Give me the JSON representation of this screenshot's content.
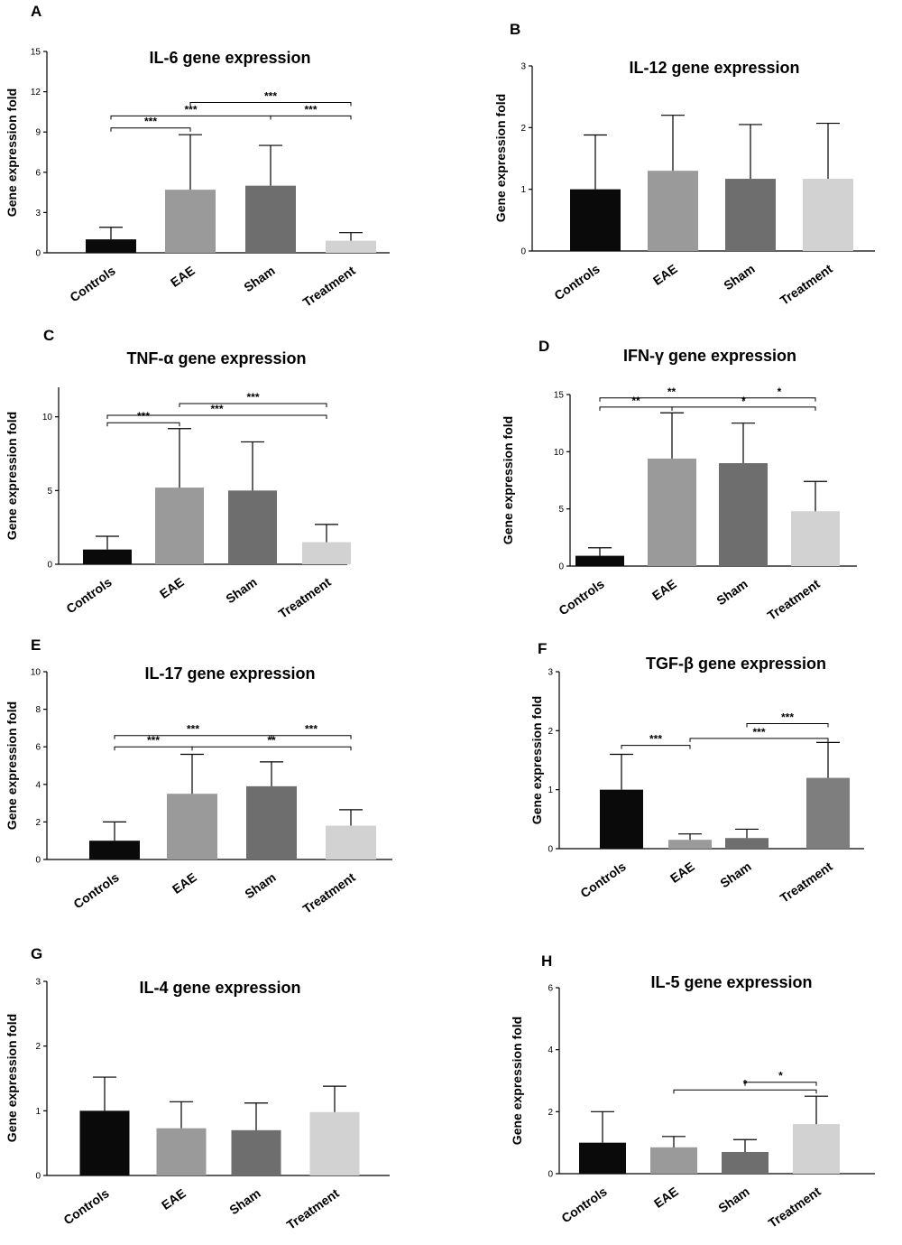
{
  "chart_data": [
    {
      "panel": "A",
      "type": "bar",
      "title": "IL-6 gene expression",
      "ylabel": "Gene expression fold",
      "categories": [
        "Controls",
        "EAE",
        "Sham",
        "Treatment"
      ],
      "values": [
        1.0,
        4.7,
        5.0,
        0.9
      ],
      "errors": [
        0.9,
        4.1,
        3.0,
        0.6
      ],
      "colors": [
        "#0a0a0a",
        "#9a9a9a",
        "#6e6e6e",
        "#d2d2d2"
      ],
      "ylim": [
        0,
        15
      ],
      "yticks": [
        "0",
        "3",
        "6",
        "9",
        "12",
        "15"
      ],
      "significance": [
        {
          "from": 0,
          "to": 1,
          "label": "***",
          "level": 9.3
        },
        {
          "from": 0,
          "to": 2,
          "label": "***",
          "level": 10.2
        },
        {
          "from": 2,
          "to": 3,
          "label": "***",
          "level": 10.2
        },
        {
          "from": 1,
          "to": 3,
          "label": "***",
          "level": 11.2
        }
      ]
    },
    {
      "panel": "B",
      "type": "bar",
      "title": "IL-12 gene expression",
      "ylabel": "Gene expression fold",
      "categories": [
        "Controls",
        "EAE",
        "Sham",
        "Treatment"
      ],
      "values": [
        1.0,
        1.3,
        1.17,
        1.17
      ],
      "errors": [
        0.88,
        0.9,
        0.88,
        0.9
      ],
      "colors": [
        "#0a0a0a",
        "#9a9a9a",
        "#6e6e6e",
        "#d2d2d2"
      ],
      "ylim": [
        0,
        3
      ],
      "yticks": [
        "0",
        "1",
        "2",
        "3"
      ],
      "significance": []
    },
    {
      "panel": "C",
      "type": "bar",
      "title": "TNF-α gene expression",
      "ylabel": "Gene expression fold",
      "categories": [
        "Controls",
        "EAE",
        "Sham",
        "Treatment"
      ],
      "values": [
        1.0,
        5.2,
        5.0,
        1.5
      ],
      "errors": [
        0.9,
        4.0,
        3.3,
        1.2
      ],
      "colors": [
        "#0a0a0a",
        "#9a9a9a",
        "#6e6e6e",
        "#d2d2d2"
      ],
      "ylim": [
        0,
        12
      ],
      "yticks": [
        "0",
        "5",
        "10"
      ],
      "significance": [
        {
          "from": 0,
          "to": 1,
          "label": "***",
          "level": 9.6
        },
        {
          "from": 0,
          "to": 3,
          "label": "***",
          "level": 10.1
        },
        {
          "from": 1,
          "to": 3,
          "label": "***",
          "level": 10.9
        }
      ]
    },
    {
      "panel": "D",
      "type": "bar",
      "title": "IFN-γ gene expression",
      "ylabel": "Gene expression fold",
      "categories": [
        "Controls",
        "EAE",
        "Sham",
        "Treatment"
      ],
      "values": [
        0.9,
        9.4,
        9.0,
        4.8
      ],
      "errors": [
        0.7,
        4.0,
        3.5,
        2.6
      ],
      "colors": [
        "#0a0a0a",
        "#9a9a9a",
        "#6e6e6e",
        "#d2d2d2"
      ],
      "ylim": [
        0,
        15
      ],
      "yticks": [
        "0",
        "5",
        "10",
        "15"
      ],
      "significance": [
        {
          "from": 0,
          "to": 1,
          "label": "**",
          "level": 13.9
        },
        {
          "from": 1,
          "to": 3,
          "label": "*",
          "level": 13.9
        },
        {
          "from": 0,
          "to": 2,
          "label": "**",
          "level": 14.7
        },
        {
          "from": 2,
          "to": 3,
          "label": "*",
          "level": 14.7
        }
      ]
    },
    {
      "panel": "E",
      "type": "bar",
      "title": "IL-17 gene expression",
      "ylabel": "Gene expression fold",
      "categories": [
        "Controls",
        "EAE",
        "Sham",
        "Treatment"
      ],
      "values": [
        1.0,
        3.5,
        3.9,
        1.8
      ],
      "errors": [
        1.0,
        2.1,
        1.3,
        0.85
      ],
      "colors": [
        "#0a0a0a",
        "#9a9a9a",
        "#6e6e6e",
        "#d2d2d2"
      ],
      "ylim": [
        0,
        10
      ],
      "yticks": [
        "0",
        "2",
        "4",
        "6",
        "8",
        "10"
      ],
      "significance": [
        {
          "from": 0,
          "to": 1,
          "label": "***",
          "level": 6.0
        },
        {
          "from": 1,
          "to": 3,
          "label": "**",
          "level": 6.0
        },
        {
          "from": 0,
          "to": 2,
          "label": "***",
          "level": 6.6
        },
        {
          "from": 2,
          "to": 3,
          "label": "***",
          "level": 6.6
        }
      ]
    },
    {
      "panel": "F",
      "type": "bar",
      "title": "TGF-β gene expression",
      "ylabel": "Gene expression fold",
      "categories": [
        "Controls",
        "EAE",
        "Sham",
        "Treatment"
      ],
      "values": [
        1.0,
        0.15,
        0.18,
        1.2
      ],
      "errors": [
        0.6,
        0.1,
        0.15,
        0.6
      ],
      "colors": [
        "#0a0a0a",
        "#9a9a9a",
        "#6e6e6e",
        "#7e7e7e"
      ],
      "ylim": [
        0,
        3
      ],
      "yticks": [
        "0",
        "1",
        "2",
        "3"
      ],
      "significance": [
        {
          "from": 0,
          "to": 1,
          "label": "***",
          "level": 1.75
        },
        {
          "from": 1,
          "to": 3,
          "label": "***",
          "level": 1.87
        },
        {
          "from": 2,
          "to": 3,
          "label": "***",
          "level": 2.12
        }
      ]
    },
    {
      "panel": "G",
      "type": "bar",
      "title": "IL-4 gene expression",
      "ylabel": "Gene expression fold",
      "categories": [
        "Controls",
        "EAE",
        "Sham",
        "Treatment"
      ],
      "values": [
        1.0,
        0.73,
        0.7,
        0.98
      ],
      "errors": [
        0.52,
        0.41,
        0.42,
        0.4
      ],
      "colors": [
        "#0a0a0a",
        "#9a9a9a",
        "#6e6e6e",
        "#d2d2d2"
      ],
      "ylim": [
        0,
        3
      ],
      "yticks": [
        "0",
        "1",
        "2",
        "3"
      ],
      "significance": []
    },
    {
      "panel": "H",
      "type": "bar",
      "title": "IL-5 gene expression",
      "ylabel": "Gene expression fold",
      "categories": [
        "Controls",
        "EAE",
        "Sham",
        "Treatment"
      ],
      "values": [
        1.0,
        0.85,
        0.7,
        1.6
      ],
      "errors": [
        1.0,
        0.35,
        0.4,
        0.9
      ],
      "colors": [
        "#0a0a0a",
        "#9a9a9a",
        "#6e6e6e",
        "#d2d2d2"
      ],
      "ylim": [
        0,
        6
      ],
      "yticks": [
        "0",
        "2",
        "4",
        "6"
      ],
      "significance": [
        {
          "from": 1,
          "to": 3,
          "label": "*",
          "level": 2.7
        },
        {
          "from": 2,
          "to": 3,
          "label": "*",
          "level": 2.95
        }
      ]
    }
  ]
}
